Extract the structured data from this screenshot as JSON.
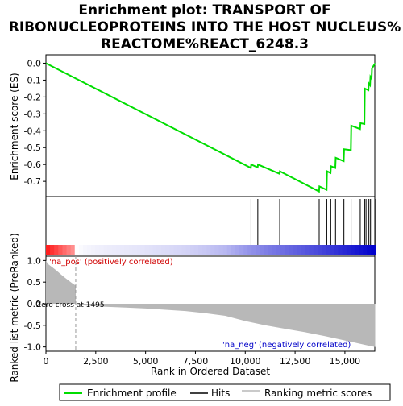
{
  "title_lines": [
    "Enrichment plot: TRANSPORT OF",
    "RIBONUCLEOPROTEINS INTO THE HOST NUCLEUS%",
    "REACTOME%REACT_6248.3"
  ],
  "colors": {
    "enrichment_line": "#00dd00",
    "hits": "#000000",
    "ranking_fill": "#b8b8b8",
    "zero_cross": "#999999",
    "pos_label": "#d00000",
    "neg_label": "#0000c8",
    "bar_red": "#ff0000",
    "bar_blue": "#0000cc"
  },
  "chart_data": [
    {
      "type": "line",
      "name": "enrichment-profile",
      "ylabel": "Enrichment score (ES)",
      "xlim": [
        0,
        16500
      ],
      "ylim": [
        -0.79,
        0.05
      ],
      "yticks": [
        0.0,
        -0.1,
        -0.2,
        -0.3,
        -0.4,
        -0.5,
        -0.6,
        -0.7
      ],
      "ytick_labels": [
        "0.0",
        "-0.1",
        "-0.2",
        "-0.3",
        "-0.4",
        "-0.5",
        "-0.6",
        "-0.7"
      ],
      "grid": false,
      "x": [
        0,
        10280,
        10300,
        10620,
        10640,
        11720,
        11740,
        13700,
        13720,
        14080,
        14100,
        14280,
        14300,
        14520,
        14540,
        14940,
        14960,
        15300,
        15320,
        15760,
        15780,
        15980,
        16000,
        16180,
        16200,
        16260,
        16280,
        16340,
        16360,
        16520
      ],
      "y": [
        0.0,
        -0.62,
        -0.6,
        -0.617,
        -0.6,
        -0.655,
        -0.64,
        -0.76,
        -0.73,
        -0.75,
        -0.64,
        -0.65,
        -0.61,
        -0.62,
        -0.56,
        -0.58,
        -0.51,
        -0.515,
        -0.37,
        -0.39,
        -0.355,
        -0.36,
        -0.15,
        -0.16,
        -0.12,
        -0.13,
        -0.08,
        -0.09,
        -0.03,
        0.0
      ]
    },
    {
      "type": "hits",
      "name": "hits",
      "x": [
        10290,
        10630,
        11730,
        13710,
        14090,
        14290,
        14530,
        14950,
        15310,
        15770,
        15990,
        16060,
        16190,
        16270,
        16350,
        16510
      ]
    },
    {
      "type": "area",
      "name": "ranked-list-metric",
      "ylabel": "Ranked list metric (PreRanked)",
      "xlabel": "Rank in Ordered Dataset",
      "xlim": [
        0,
        16500
      ],
      "ylim": [
        -1.1,
        1.1
      ],
      "xticks": [
        0,
        2500,
        5000,
        7500,
        10000,
        12500,
        15000
      ],
      "xtick_labels": [
        "0",
        "2,500",
        "5,000",
        "7,500",
        "10,000",
        "12,500",
        "15,000"
      ],
      "yticks": [
        1.0,
        0.5,
        0.0,
        -0.5,
        -1.0
      ],
      "ytick_labels": [
        "1.0",
        "0.5",
        "0.0",
        "-0.5",
        "-1.0"
      ],
      "x": [
        0,
        100,
        300,
        500,
        700,
        900,
        1100,
        1300,
        1495,
        1500,
        2000,
        3000,
        4000,
        5000,
        6000,
        7000,
        8000,
        9000,
        10000,
        11000,
        12000,
        13000,
        14000,
        15000,
        15500,
        16000,
        16300,
        16520
      ],
      "y": [
        1.0,
        0.92,
        0.85,
        0.78,
        0.7,
        0.62,
        0.55,
        0.48,
        0.42,
        0.0,
        -0.04,
        -0.07,
        -0.09,
        -0.11,
        -0.14,
        -0.17,
        -0.22,
        -0.28,
        -0.4,
        -0.5,
        -0.58,
        -0.66,
        -0.75,
        -0.85,
        -0.9,
        -0.95,
        -0.98,
        -1.0
      ],
      "annotations": {
        "positive": "'na_pos' (positively correlated)",
        "negative": "'na_neg' (negatively correlated)",
        "zero_cross": "Zero cross at 1495"
      },
      "zero_cross_x": 1495
    }
  ],
  "legend": {
    "placement": "bottom",
    "items": [
      {
        "label": "Enrichment profile",
        "color": "#00dd00"
      },
      {
        "label": "Hits",
        "color": "#000000"
      },
      {
        "label": "Ranking metric scores",
        "color": "#b8b8b8"
      }
    ]
  }
}
